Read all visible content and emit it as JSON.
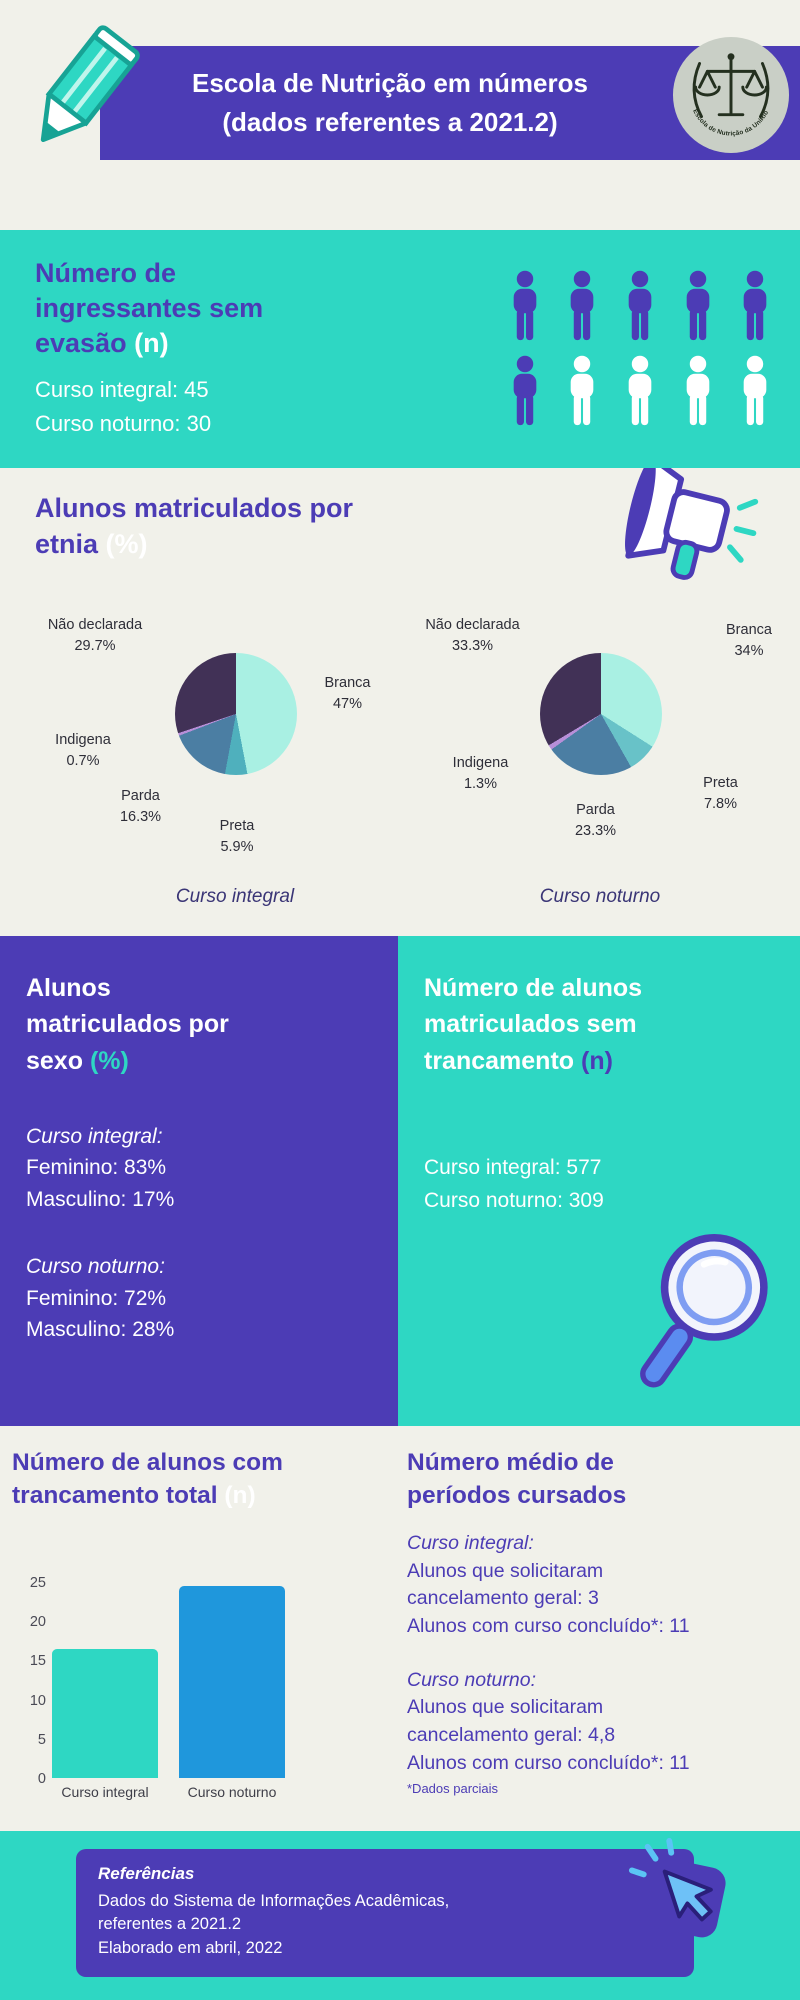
{
  "palette": {
    "purple": "#4c3cb5",
    "teal": "#2ed7c3",
    "cream": "#f1f1ea",
    "blue": "#1f97dc",
    "dark_text": "#2e2e38"
  },
  "header": {
    "title_line1": "Escola de Nutrição em números",
    "title_line2": "(dados referentes a 2021.2)",
    "logo_text": "Escola de Nutrição da UniRio"
  },
  "ingressantes": {
    "heading_lines": [
      "Número de",
      "ingressantes sem",
      "evasão"
    ],
    "heading_accent": "(n)",
    "lines": [
      "Curso integral: 45",
      "Curso noturno: 30"
    ],
    "pictogram": {
      "purple_count": 6,
      "white_count": 4
    }
  },
  "etnia": {
    "heading_line1": "Alunos matriculados por",
    "heading_line2": "etnia",
    "heading_accent": "(%)",
    "caption_left": "Curso integral",
    "caption_right": "Curso noturno"
  },
  "sexo": {
    "heading_lines": [
      "Alunos",
      "matriculados por",
      "sexo"
    ],
    "heading_accent": "(%)",
    "groups": [
      {
        "title": "Curso integral:",
        "lines": [
          "Feminino: 83%",
          "Masculino: 17%"
        ]
      },
      {
        "title": "Curso noturno:",
        "lines": [
          "Feminino: 72%",
          "Masculino: 28%"
        ]
      }
    ]
  },
  "trancamento_sem": {
    "heading_lines": [
      "Número de alunos",
      "matriculados sem",
      "trancamento"
    ],
    "heading_accent": "(n)",
    "lines": [
      "Curso integral: 577",
      "Curso noturno: 309"
    ]
  },
  "trancamento_total": {
    "heading_lines": [
      "Número de alunos com",
      "trancamento total"
    ],
    "heading_accent": "(n)"
  },
  "periodos": {
    "heading_lines": [
      "Número médio de",
      "períodos cursados"
    ],
    "groups": [
      {
        "title": "Curso integral:",
        "lines": [
          "Alunos que solicitaram",
          "cancelamento geral: 3",
          "Alunos com curso concluído*: 11"
        ]
      },
      {
        "title": "Curso noturno:",
        "lines": [
          "Alunos que solicitaram",
          "cancelamento geral: 4,8",
          "Alunos com curso concluído*: 11"
        ]
      }
    ],
    "footnote": "*Dados parciais"
  },
  "footer": {
    "title": "Referências",
    "lines": [
      "Dados do Sistema de Informações Acadêmicas,",
      "referentes a 2021.2",
      "Elaborado em abril, 2022"
    ]
  },
  "chart_data": [
    {
      "type": "pie",
      "title": "Curso integral",
      "legend_position": "around",
      "slices": [
        {
          "label": "Branca",
          "value": 47,
          "display": "47%",
          "color": "#a9f0e3"
        },
        {
          "label": "Preta",
          "value": 5.9,
          "display": "5.9%",
          "color": "#4fb0bd"
        },
        {
          "label": "Parda",
          "value": 16.3,
          "display": "16.3%",
          "color": "#4b7ea3"
        },
        {
          "label": "Indigena",
          "value": 0.7,
          "display": "0.7%",
          "color": "#b78fd8"
        },
        {
          "label": "Não declarada",
          "value": 29.7,
          "display": "29.7%",
          "color": "#413156"
        }
      ]
    },
    {
      "type": "pie",
      "title": "Curso noturno",
      "legend_position": "around",
      "slices": [
        {
          "label": "Branca",
          "value": 34,
          "display": "34%",
          "color": "#a9f0e3"
        },
        {
          "label": "Preta",
          "value": 7.8,
          "display": "7.8%",
          "color": "#68c2c8"
        },
        {
          "label": "Parda",
          "value": 23.3,
          "display": "23.3%",
          "color": "#4b7ea3"
        },
        {
          "label": "Indigena",
          "value": 1.3,
          "display": "1.3%",
          "color": "#b78fd8"
        },
        {
          "label": "Não declarada",
          "value": 33.3,
          "display": "33.3%",
          "color": "#413156"
        }
      ]
    },
    {
      "type": "bar",
      "title": "Número de alunos com trancamento total (n)",
      "categories": [
        "Curso integral",
        "Curso noturno"
      ],
      "values": [
        16.5,
        24.5
      ],
      "colors": [
        "#2ed7c3",
        "#1f97dc"
      ],
      "ylim": [
        0,
        25
      ],
      "yticks": [
        0,
        5,
        10,
        15,
        20,
        25
      ],
      "grid": false
    }
  ]
}
